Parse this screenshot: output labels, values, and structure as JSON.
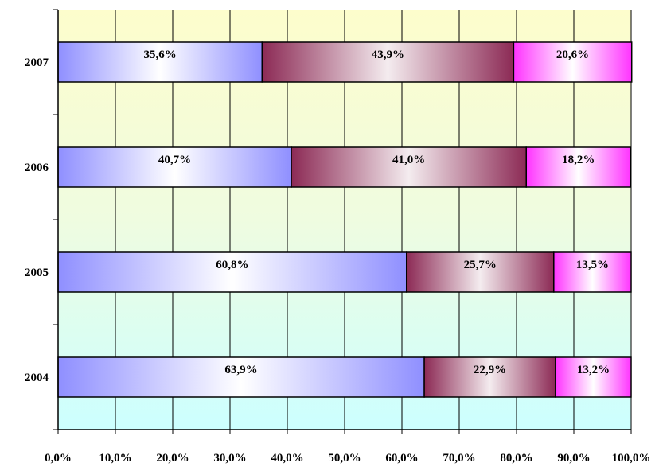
{
  "chart_data": {
    "type": "bar",
    "orientation": "horizontal",
    "stacked": "percent",
    "categories": [
      "2004",
      "2005",
      "2006",
      "2007"
    ],
    "series": [
      {
        "values": [
          63.9,
          60.8,
          40.7,
          35.6
        ],
        "labels": [
          "63,9%",
          "60,8%",
          "40,7%",
          "35,6%"
        ]
      },
      {
        "values": [
          22.9,
          25.7,
          41.0,
          43.9
        ],
        "labels": [
          "22,9%",
          "25,7%",
          "41,0%",
          "43,9%"
        ]
      },
      {
        "values": [
          13.2,
          13.5,
          18.2,
          20.6
        ],
        "labels": [
          "13,2%",
          "13,5%",
          "18,2%",
          "20,6%"
        ]
      }
    ],
    "xlim": [
      0,
      100
    ],
    "x_ticks": [
      0,
      10,
      20,
      30,
      40,
      50,
      60,
      70,
      80,
      90,
      100
    ],
    "x_tick_labels": [
      "0,0%",
      "10,0%",
      "20,0%",
      "30,0%",
      "40,0%",
      "50,0%",
      "60,0%",
      "70,0%",
      "80,0%",
      "90,0%",
      "100,0%"
    ],
    "grid": "vertical",
    "legend": "none",
    "colors": {
      "series_1_edge": "#8f8fff",
      "series_1_center": "#ffffff",
      "series_2_edge": "#8c2a55",
      "series_2_center": "#f4ecef",
      "series_3_edge": "#ff33ff",
      "series_3_center": "#ffffff",
      "background_top": "#fdfdcc",
      "background_bottom": "#ccffff"
    }
  }
}
